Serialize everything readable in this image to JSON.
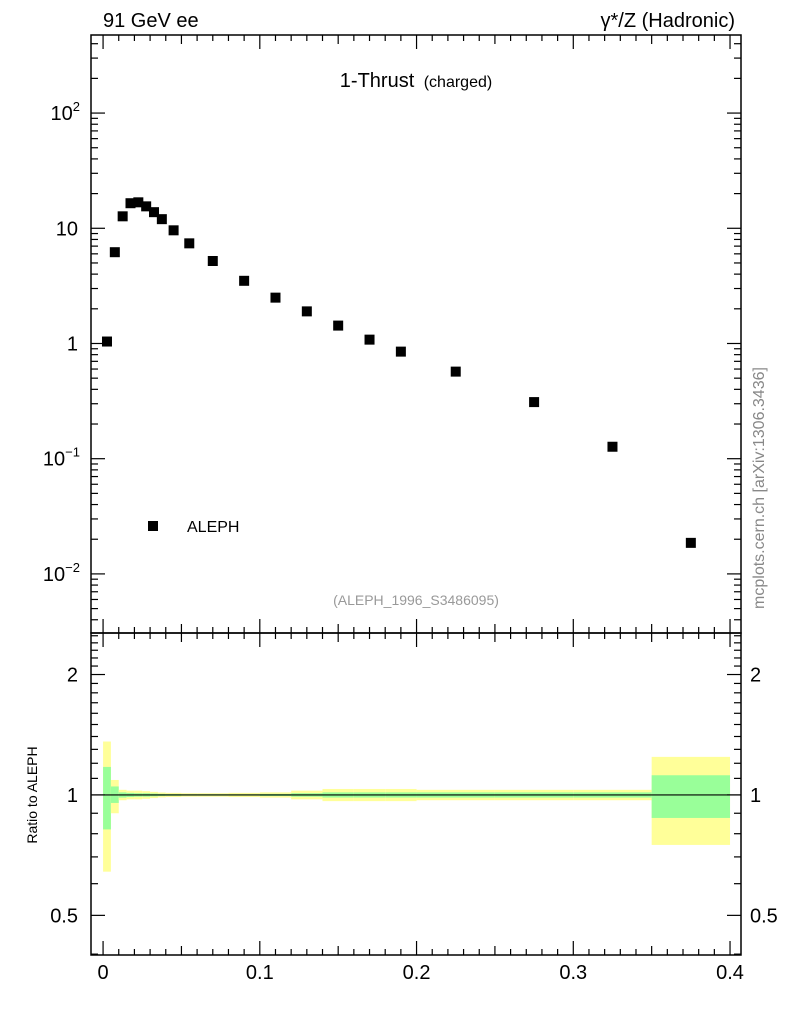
{
  "chart_data": {
    "type": "scatter",
    "header_left": "91 GeV ee",
    "header_right": "γ*/Z (Hadronic)",
    "title": "1-Thrust",
    "title_sub": "(charged)",
    "analysis_id": "(ALEPH_1996_S3486095)",
    "watermark": "mcplots.cern.ch [arXiv:1306.3436]",
    "xlabel": "",
    "ylabel": "",
    "xlim": [
      -0.0077,
      0.407
    ],
    "ylim": [
      0.00307,
      476
    ],
    "yscale": "log",
    "x_ticks": [
      "0",
      "0.1",
      "0.2",
      "0.3",
      "0.4"
    ],
    "x_tick_values": [
      0,
      0.1,
      0.2,
      0.3,
      0.4
    ],
    "y_ticks": [
      {
        "value": 0.01,
        "base": "10",
        "exp": "−2"
      },
      {
        "value": 0.1,
        "base": "10",
        "exp": "−1"
      },
      {
        "value": 1,
        "base": "1",
        "exp": ""
      },
      {
        "value": 10,
        "base": "10",
        "exp": ""
      },
      {
        "value": 100,
        "base": "10",
        "exp": "2"
      }
    ],
    "legend": {
      "label": "ALEPH",
      "placement": "bottom-left"
    },
    "bin_edges": [
      0,
      0.005,
      0.01,
      0.015,
      0.02,
      0.025,
      0.03,
      0.035,
      0.04,
      0.05,
      0.06,
      0.08,
      0.1,
      0.12,
      0.14,
      0.16,
      0.18,
      0.2,
      0.25,
      0.3,
      0.35,
      0.4
    ],
    "series": [
      {
        "name": "ALEPH",
        "x": [
          0.0025,
          0.0075,
          0.0125,
          0.0175,
          0.0225,
          0.0275,
          0.0325,
          0.0375,
          0.045,
          0.055,
          0.07,
          0.09,
          0.11,
          0.13,
          0.15,
          0.17,
          0.19,
          0.225,
          0.275,
          0.325,
          0.375
        ],
        "y": [
          1.04,
          6.2,
          12.7,
          16.5,
          16.8,
          15.5,
          13.8,
          12.0,
          9.6,
          7.4,
          5.2,
          3.5,
          2.5,
          1.9,
          1.43,
          1.08,
          0.85,
          0.57,
          0.31,
          0.127,
          0.0186
        ]
      }
    ],
    "ratio": {
      "ylabel": "Ratio to ALEPH",
      "ylim": [
        0.398,
        2.54
      ],
      "yscale": "log",
      "y_ticks": [
        "0.5",
        "1",
        "2"
      ],
      "y_tick_values": [
        0.5,
        1,
        2
      ],
      "band_inner_color": "#99ff99",
      "band_outer_color": "#ffff99",
      "inner_lo": [
        0.82,
        0.955,
        0.985,
        0.988,
        0.99,
        0.99,
        0.992,
        0.994,
        0.995,
        0.996,
        0.996,
        0.996,
        0.994,
        0.99,
        0.985,
        0.985,
        0.985,
        0.985,
        0.985,
        0.985,
        0.876
      ],
      "inner_hi": [
        1.175,
        1.05,
        1.015,
        1.012,
        1.01,
        1.01,
        1.008,
        1.006,
        1.005,
        1.004,
        1.004,
        1.004,
        1.006,
        1.01,
        1.015,
        1.015,
        1.015,
        1.015,
        1.015,
        1.015,
        1.12
      ],
      "outer_lo": [
        0.643,
        0.9,
        0.97,
        0.975,
        0.975,
        0.978,
        0.982,
        0.986,
        0.988,
        0.99,
        0.99,
        0.988,
        0.985,
        0.975,
        0.965,
        0.965,
        0.965,
        0.97,
        0.97,
        0.97,
        0.75
      ],
      "outer_hi": [
        1.36,
        1.09,
        1.03,
        1.025,
        1.025,
        1.022,
        1.018,
        1.014,
        1.012,
        1.01,
        1.01,
        1.012,
        1.015,
        1.025,
        1.035,
        1.035,
        1.035,
        1.03,
        1.03,
        1.03,
        1.245
      ]
    }
  }
}
